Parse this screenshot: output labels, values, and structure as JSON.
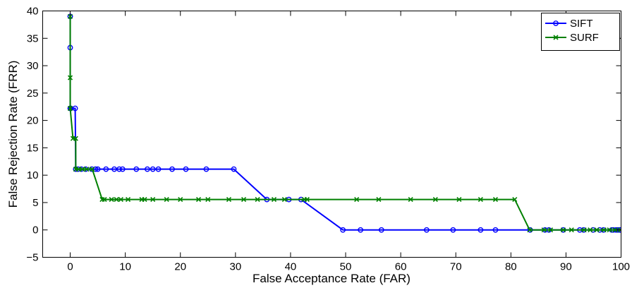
{
  "chart_data": {
    "type": "line",
    "xlabel": "False Acceptance Rate (FAR)",
    "ylabel": "False Rejection Rate (FRR)",
    "xlim": [
      -5,
      100
    ],
    "ylim": [
      -5,
      40
    ],
    "xticks": [
      0,
      10,
      20,
      30,
      40,
      50,
      60,
      70,
      80,
      90,
      100
    ],
    "yticks": [
      -5,
      0,
      5,
      10,
      15,
      20,
      25,
      30,
      35,
      40
    ],
    "grid": false,
    "legend_position": "top-right",
    "series": [
      {
        "name": "SIFT",
        "color": "#0000ff",
        "marker": "circle",
        "x": [
          0,
          0,
          0,
          0.1,
          0.9,
          1,
          1.4,
          2,
          2.8,
          3.9,
          4.6,
          5,
          6.5,
          8,
          8.9,
          9.5,
          12,
          14,
          15,
          16,
          18.5,
          21,
          24.7,
          29.7,
          35.7,
          39.7,
          41.9,
          49.5,
          52.7,
          56.5,
          64.7,
          69.5,
          74.5,
          77.2,
          83.5,
          86.2,
          86.9,
          89.5,
          92.5,
          93.2,
          94.9,
          96.1,
          96.8,
          98.3,
          98.6,
          99.1,
          99.4,
          99.7,
          99.8
        ],
        "y": [
          39,
          33.3,
          22.2,
          22.2,
          22.2,
          11.1,
          11.1,
          11.1,
          11.1,
          11.1,
          11.1,
          11.1,
          11.1,
          11.1,
          11.1,
          11.1,
          11.1,
          11.1,
          11.1,
          11.1,
          11.1,
          11.1,
          11.1,
          11.1,
          5.56,
          5.56,
          5.56,
          0,
          0,
          0,
          0,
          0,
          0,
          0,
          0,
          0,
          0,
          0,
          0,
          0,
          0,
          0,
          0,
          0,
          0,
          0,
          0,
          0,
          0
        ]
      },
      {
        "name": "SURF",
        "color": "#008000",
        "marker": "x",
        "x": [
          0,
          0,
          0,
          0,
          0.5,
          1,
          1,
          1.5,
          2.2,
          3,
          4,
          5.8,
          6.2,
          7.5,
          8.4,
          9.2,
          10.5,
          13,
          13.5,
          15,
          17.5,
          20,
          23.3,
          25,
          28.8,
          31.5,
          34,
          37,
          38.9,
          42.5,
          43,
          52,
          56,
          61.8,
          66.3,
          70.6,
          74.5,
          77.2,
          80.7,
          83.4,
          86,
          87.2,
          89.5,
          91,
          93.3,
          94.4,
          95.6,
          96.9,
          97.9,
          98.9,
          99.9
        ],
        "y": [
          39,
          27.8,
          22.2,
          22.2,
          16.7,
          16.7,
          11.1,
          11.1,
          11.1,
          11.1,
          11.1,
          5.56,
          5.56,
          5.56,
          5.56,
          5.56,
          5.56,
          5.56,
          5.56,
          5.56,
          5.56,
          5.56,
          5.56,
          5.56,
          5.56,
          5.56,
          5.56,
          5.56,
          5.56,
          5.56,
          5.56,
          5.56,
          5.56,
          5.56,
          5.56,
          5.56,
          5.56,
          5.56,
          5.56,
          0,
          0,
          0,
          0,
          0,
          0,
          0,
          0,
          0,
          0,
          0,
          0
        ]
      }
    ]
  }
}
